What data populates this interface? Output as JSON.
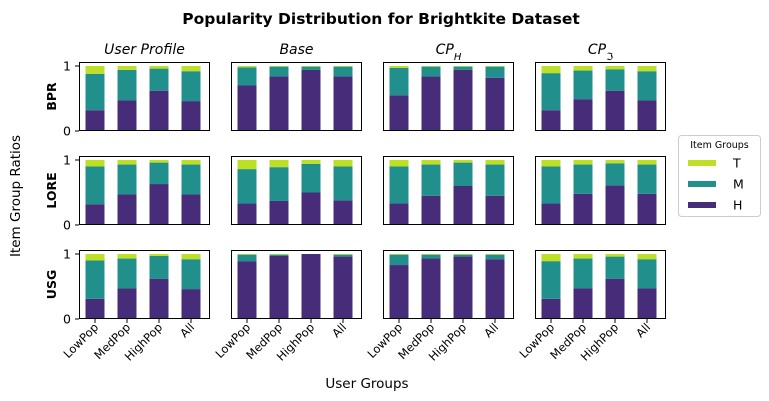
{
  "chart_data": {
    "type": "bar",
    "stacked": true,
    "title": "Popularity Distribution for Brightkite Dataset",
    "xlabel": "User Groups",
    "ylabel": "Item Group Ratios",
    "categories": [
      "LowPop",
      "MedPop",
      "HighPop",
      "All"
    ],
    "ylim": [
      0,
      1
    ],
    "yticks": [
      "0",
      "1"
    ],
    "columns": [
      "User Profile",
      "Base",
      "CP_H",
      "CP_ℑ"
    ],
    "rows": [
      "BPR",
      "LORE",
      "USG"
    ],
    "legend": {
      "title": "Item Groups",
      "placement": "right",
      "items": [
        {
          "label": "T",
          "color": "#bddf26"
        },
        {
          "label": "M",
          "color": "#21908d"
        },
        {
          "label": "H",
          "color": "#472c7a"
        }
      ]
    },
    "panels": [
      {
        "row": "BPR",
        "column": "User Profile",
        "H": [
          0.32,
          0.47,
          0.62,
          0.46
        ],
        "M": [
          0.56,
          0.47,
          0.34,
          0.46
        ],
        "T": [
          0.12,
          0.06,
          0.04,
          0.08
        ]
      },
      {
        "row": "BPR",
        "column": "Base",
        "H": [
          0.7,
          0.84,
          0.94,
          0.84
        ],
        "M": [
          0.28,
          0.15,
          0.05,
          0.15
        ],
        "T": [
          0.02,
          0.01,
          0.01,
          0.01
        ]
      },
      {
        "row": "BPR",
        "column": "CP_H",
        "H": [
          0.55,
          0.84,
          0.94,
          0.82
        ],
        "M": [
          0.42,
          0.15,
          0.05,
          0.17
        ],
        "T": [
          0.03,
          0.01,
          0.01,
          0.01
        ]
      },
      {
        "row": "BPR",
        "column": "CP_ℑ",
        "H": [
          0.32,
          0.49,
          0.62,
          0.47
        ],
        "M": [
          0.57,
          0.44,
          0.33,
          0.45
        ],
        "T": [
          0.11,
          0.07,
          0.05,
          0.08
        ]
      },
      {
        "row": "LORE",
        "column": "User Profile",
        "H": [
          0.32,
          0.47,
          0.63,
          0.47
        ],
        "M": [
          0.58,
          0.46,
          0.33,
          0.46
        ],
        "T": [
          0.1,
          0.07,
          0.04,
          0.07
        ]
      },
      {
        "row": "LORE",
        "column": "Base",
        "H": [
          0.33,
          0.37,
          0.5,
          0.38
        ],
        "M": [
          0.53,
          0.52,
          0.44,
          0.52
        ],
        "T": [
          0.14,
          0.11,
          0.06,
          0.1
        ]
      },
      {
        "row": "LORE",
        "column": "CP_H",
        "H": [
          0.33,
          0.45,
          0.6,
          0.45
        ],
        "M": [
          0.57,
          0.48,
          0.36,
          0.48
        ],
        "T": [
          0.1,
          0.07,
          0.04,
          0.07
        ]
      },
      {
        "row": "LORE",
        "column": "CP_ℑ",
        "H": [
          0.33,
          0.48,
          0.61,
          0.48
        ],
        "M": [
          0.57,
          0.45,
          0.34,
          0.45
        ],
        "T": [
          0.1,
          0.07,
          0.05,
          0.07
        ]
      },
      {
        "row": "USG",
        "column": "User Profile",
        "H": [
          0.31,
          0.47,
          0.62,
          0.46
        ],
        "M": [
          0.59,
          0.46,
          0.35,
          0.46
        ],
        "T": [
          0.1,
          0.07,
          0.03,
          0.08
        ]
      },
      {
        "row": "USG",
        "column": "Base",
        "H": [
          0.89,
          0.97,
          1.0,
          0.96
        ],
        "M": [
          0.1,
          0.02,
          0.0,
          0.03
        ],
        "T": [
          0.01,
          0.01,
          0.0,
          0.01
        ]
      },
      {
        "row": "USG",
        "column": "CP_H",
        "H": [
          0.83,
          0.93,
          0.96,
          0.92
        ],
        "M": [
          0.16,
          0.06,
          0.03,
          0.07
        ],
        "T": [
          0.01,
          0.01,
          0.01,
          0.01
        ]
      },
      {
        "row": "USG",
        "column": "CP_ℑ",
        "H": [
          0.31,
          0.47,
          0.62,
          0.47
        ],
        "M": [
          0.58,
          0.46,
          0.34,
          0.45
        ],
        "T": [
          0.11,
          0.07,
          0.04,
          0.08
        ]
      }
    ]
  }
}
